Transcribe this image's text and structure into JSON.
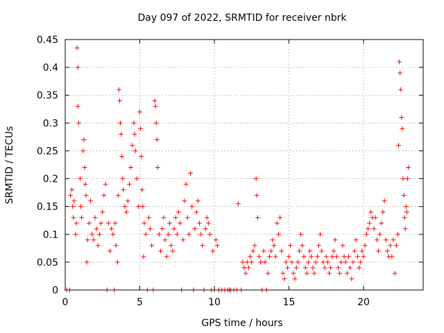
{
  "chart_data": {
    "type": "scatter",
    "title": "Day 097 of 2022, SRMTID for receiver nbrk",
    "xlabel": "GPS time / hours",
    "ylabel": "SRMTID / TECUs",
    "xlim": [
      0,
      24
    ],
    "ylim": [
      0,
      0.45
    ],
    "xticks": [
      0,
      5,
      10,
      15,
      20
    ],
    "yticks": [
      0,
      0.05,
      0.1,
      0.15,
      0.2,
      0.25,
      0.3,
      0.35,
      0.4,
      0.45
    ],
    "grid": true,
    "marker": "+",
    "color": "#ff0000",
    "series": [
      {
        "values": [
          [
            0.1,
            0.0
          ],
          [
            0.3,
            0.0
          ],
          [
            0.35,
            0.17
          ],
          [
            0.45,
            0.18
          ],
          [
            0.5,
            0.15
          ],
          [
            0.55,
            0.13
          ],
          [
            0.6,
            0.16
          ],
          [
            0.7,
            0.1
          ],
          [
            0.75,
            0.12
          ],
          [
            0.8,
            0.435
          ],
          [
            0.85,
            0.4
          ],
          [
            0.85,
            0.33
          ],
          [
            0.9,
            0.3
          ],
          [
            1.0,
            0.2
          ],
          [
            1.05,
            0.15
          ],
          [
            1.1,
            0.13
          ],
          [
            1.2,
            0.25
          ],
          [
            1.25,
            0.27
          ],
          [
            1.3,
            0.22
          ],
          [
            1.35,
            0.19
          ],
          [
            1.4,
            0.17
          ],
          [
            1.45,
            0.05
          ],
          [
            1.5,
            0.09
          ],
          [
            1.6,
            0.12
          ],
          [
            1.7,
            0.16
          ],
          [
            1.8,
            0.1
          ],
          [
            1.9,
            0.09
          ],
          [
            2.0,
            0.13
          ],
          [
            2.1,
            0.11
          ],
          [
            2.2,
            0.08
          ],
          [
            2.3,
            0.1
          ],
          [
            2.4,
            0.12
          ],
          [
            2.5,
            0.14
          ],
          [
            2.6,
            0.17
          ],
          [
            2.7,
            0.19
          ],
          [
            2.8,
            0.0
          ],
          [
            2.9,
            0.12
          ],
          [
            3.0,
            0.07
          ],
          [
            3.1,
            0.11
          ],
          [
            3.2,
            0.1
          ],
          [
            3.3,
            0.0
          ],
          [
            3.35,
            0.12
          ],
          [
            3.4,
            0.08
          ],
          [
            3.5,
            0.05
          ],
          [
            3.55,
            0.17
          ],
          [
            3.6,
            0.36
          ],
          [
            3.65,
            0.34
          ],
          [
            3.7,
            0.3
          ],
          [
            3.75,
            0.28
          ],
          [
            3.8,
            0.24
          ],
          [
            3.85,
            0.2
          ],
          [
            3.9,
            0.18
          ],
          [
            4.0,
            0.15
          ],
          [
            4.1,
            0.14
          ],
          [
            4.2,
            0.16
          ],
          [
            4.3,
            0.19
          ],
          [
            4.4,
            0.22
          ],
          [
            4.5,
            0.26
          ],
          [
            4.6,
            0.3
          ],
          [
            4.65,
            0.28
          ],
          [
            4.7,
            0.25
          ],
          [
            4.8,
            0.2
          ],
          [
            4.9,
            0.15
          ],
          [
            5.0,
            0.32
          ],
          [
            5.05,
            0.29
          ],
          [
            5.1,
            0.24
          ],
          [
            5.15,
            0.18
          ],
          [
            5.2,
            0.15
          ],
          [
            5.25,
            0.06
          ],
          [
            5.3,
            0.12
          ],
          [
            5.4,
            0.1
          ],
          [
            5.5,
            0.0
          ],
          [
            5.6,
            0.13
          ],
          [
            5.7,
            0.11
          ],
          [
            5.8,
            0.08
          ],
          [
            5.9,
            0.0
          ],
          [
            6.0,
            0.34
          ],
          [
            6.05,
            0.33
          ],
          [
            6.1,
            0.3
          ],
          [
            6.15,
            0.27
          ],
          [
            6.2,
            0.22
          ],
          [
            6.3,
            0.1
          ],
          [
            6.4,
            0.07
          ],
          [
            6.5,
            0.11
          ],
          [
            6.6,
            0.13
          ],
          [
            6.7,
            0.09
          ],
          [
            6.8,
            0.06
          ],
          [
            6.9,
            0.1
          ],
          [
            7.0,
            0.12
          ],
          [
            7.1,
            0.08
          ],
          [
            7.2,
            0.07
          ],
          [
            7.3,
            0.11
          ],
          [
            7.4,
            0.13
          ],
          [
            7.5,
            0.1
          ],
          [
            7.6,
            0.14
          ],
          [
            7.7,
            0.12
          ],
          [
            7.8,
            0.0
          ],
          [
            7.9,
            0.09
          ],
          [
            8.0,
            0.16
          ],
          [
            8.1,
            0.19
          ],
          [
            8.2,
            0.13
          ],
          [
            8.3,
            0.1
          ],
          [
            8.4,
            0.21
          ],
          [
            8.5,
            0.15
          ],
          [
            8.6,
            0.0
          ],
          [
            8.7,
            0.11
          ],
          [
            8.8,
            0.14
          ],
          [
            8.9,
            0.16
          ],
          [
            9.0,
            0.12
          ],
          [
            9.1,
            0.1
          ],
          [
            9.2,
            0.08
          ],
          [
            9.3,
            0.0
          ],
          [
            9.4,
            0.11
          ],
          [
            9.5,
            0.13
          ],
          [
            9.6,
            0.12
          ],
          [
            9.7,
            0.1
          ],
          [
            9.8,
            0.0
          ],
          [
            9.9,
            0.07
          ],
          [
            10.0,
            0.0
          ],
          [
            10.1,
            0.09
          ],
          [
            10.2,
            0.08
          ],
          [
            10.3,
            0.0
          ],
          [
            10.5,
            0.0
          ],
          [
            10.7,
            0.0
          ],
          [
            10.9,
            0.0
          ],
          [
            11.0,
            0.0
          ],
          [
            11.1,
            0.0
          ],
          [
            11.3,
            0.0
          ],
          [
            11.5,
            0.0
          ],
          [
            11.6,
            0.155
          ],
          [
            11.8,
            0.0
          ],
          [
            11.9,
            0.05
          ],
          [
            12.0,
            0.04
          ],
          [
            12.1,
            0.03
          ],
          [
            12.2,
            0.05
          ],
          [
            12.3,
            0.04
          ],
          [
            12.4,
            0.06
          ],
          [
            12.5,
            0.05
          ],
          [
            12.6,
            0.07
          ],
          [
            12.7,
            0.08
          ],
          [
            12.8,
            0.2
          ],
          [
            12.85,
            0.17
          ],
          [
            12.9,
            0.13
          ],
          [
            13.0,
            0.06
          ],
          [
            13.1,
            0.05
          ],
          [
            13.2,
            0.0
          ],
          [
            13.3,
            0.07
          ],
          [
            13.4,
            0.05
          ],
          [
            13.5,
            0.0
          ],
          [
            13.6,
            0.03
          ],
          [
            13.7,
            0.06
          ],
          [
            13.8,
            0.07
          ],
          [
            13.9,
            0.09
          ],
          [
            14.0,
            0.08
          ],
          [
            14.1,
            0.06
          ],
          [
            14.2,
            0.12
          ],
          [
            14.3,
            0.1
          ],
          [
            14.4,
            0.13
          ],
          [
            14.5,
            0.07
          ],
          [
            14.6,
            0.03
          ],
          [
            14.7,
            0.02
          ],
          [
            14.8,
            0.05
          ],
          [
            14.9,
            0.04
          ],
          [
            15.0,
            0.06
          ],
          [
            15.1,
            0.08
          ],
          [
            15.2,
            0.05
          ],
          [
            15.3,
            0.03
          ],
          [
            15.4,
            0.02
          ],
          [
            15.5,
            0.04
          ],
          [
            15.6,
            0.05
          ],
          [
            15.7,
            0.07
          ],
          [
            15.8,
            0.1
          ],
          [
            15.9,
            0.08
          ],
          [
            16.0,
            0.06
          ],
          [
            16.1,
            0.04
          ],
          [
            16.2,
            0.03
          ],
          [
            16.3,
            0.05
          ],
          [
            16.4,
            0.07
          ],
          [
            16.5,
            0.06
          ],
          [
            16.6,
            0.04
          ],
          [
            16.7,
            0.03
          ],
          [
            16.8,
            0.05
          ],
          [
            16.9,
            0.06
          ],
          [
            17.0,
            0.08
          ],
          [
            17.1,
            0.1
          ],
          [
            17.2,
            0.07
          ],
          [
            17.3,
            0.05
          ],
          [
            17.4,
            0.04
          ],
          [
            17.5,
            0.06
          ],
          [
            17.6,
            0.05
          ],
          [
            17.7,
            0.03
          ],
          [
            17.8,
            0.04
          ],
          [
            17.9,
            0.06
          ],
          [
            18.0,
            0.07
          ],
          [
            18.1,
            0.09
          ],
          [
            18.2,
            0.06
          ],
          [
            18.3,
            0.04
          ],
          [
            18.4,
            0.03
          ],
          [
            18.5,
            0.05
          ],
          [
            18.6,
            0.08
          ],
          [
            18.7,
            0.06
          ],
          [
            18.8,
            0.05
          ],
          [
            18.9,
            0.03
          ],
          [
            19.0,
            0.06
          ],
          [
            19.1,
            0.04
          ],
          [
            19.2,
            0.02
          ],
          [
            19.3,
            0.05
          ],
          [
            19.4,
            0.07
          ],
          [
            19.5,
            0.09
          ],
          [
            19.6,
            0.06
          ],
          [
            19.7,
            0.04
          ],
          [
            19.8,
            0.05
          ],
          [
            19.9,
            0.07
          ],
          [
            20.0,
            0.06
          ],
          [
            20.1,
            0.08
          ],
          [
            20.2,
            0.1
          ],
          [
            20.3,
            0.11
          ],
          [
            20.4,
            0.12
          ],
          [
            20.5,
            0.14
          ],
          [
            20.6,
            0.13
          ],
          [
            20.7,
            0.11
          ],
          [
            20.8,
            0.13
          ],
          [
            20.9,
            0.09
          ],
          [
            21.0,
            0.07
          ],
          [
            21.1,
            0.1
          ],
          [
            21.2,
            0.12
          ],
          [
            21.3,
            0.14
          ],
          [
            21.4,
            0.16
          ],
          [
            21.5,
            0.09
          ],
          [
            21.6,
            0.07
          ],
          [
            21.7,
            0.06
          ],
          [
            21.8,
            0.08
          ],
          [
            21.9,
            0.06
          ],
          [
            22.0,
            0.09
          ],
          [
            22.1,
            0.03
          ],
          [
            22.2,
            0.08
          ],
          [
            22.3,
            0.1
          ],
          [
            22.35,
            0.26
          ],
          [
            22.4,
            0.41
          ],
          [
            22.45,
            0.39
          ],
          [
            22.5,
            0.36
          ],
          [
            22.55,
            0.31
          ],
          [
            22.6,
            0.29
          ],
          [
            22.65,
            0.2
          ],
          [
            22.7,
            0.17
          ],
          [
            22.75,
            0.13
          ],
          [
            22.8,
            0.11
          ],
          [
            22.85,
            0.15
          ],
          [
            22.9,
            0.14
          ],
          [
            22.95,
            0.2
          ],
          [
            23.0,
            0.22
          ]
        ]
      }
    ]
  }
}
